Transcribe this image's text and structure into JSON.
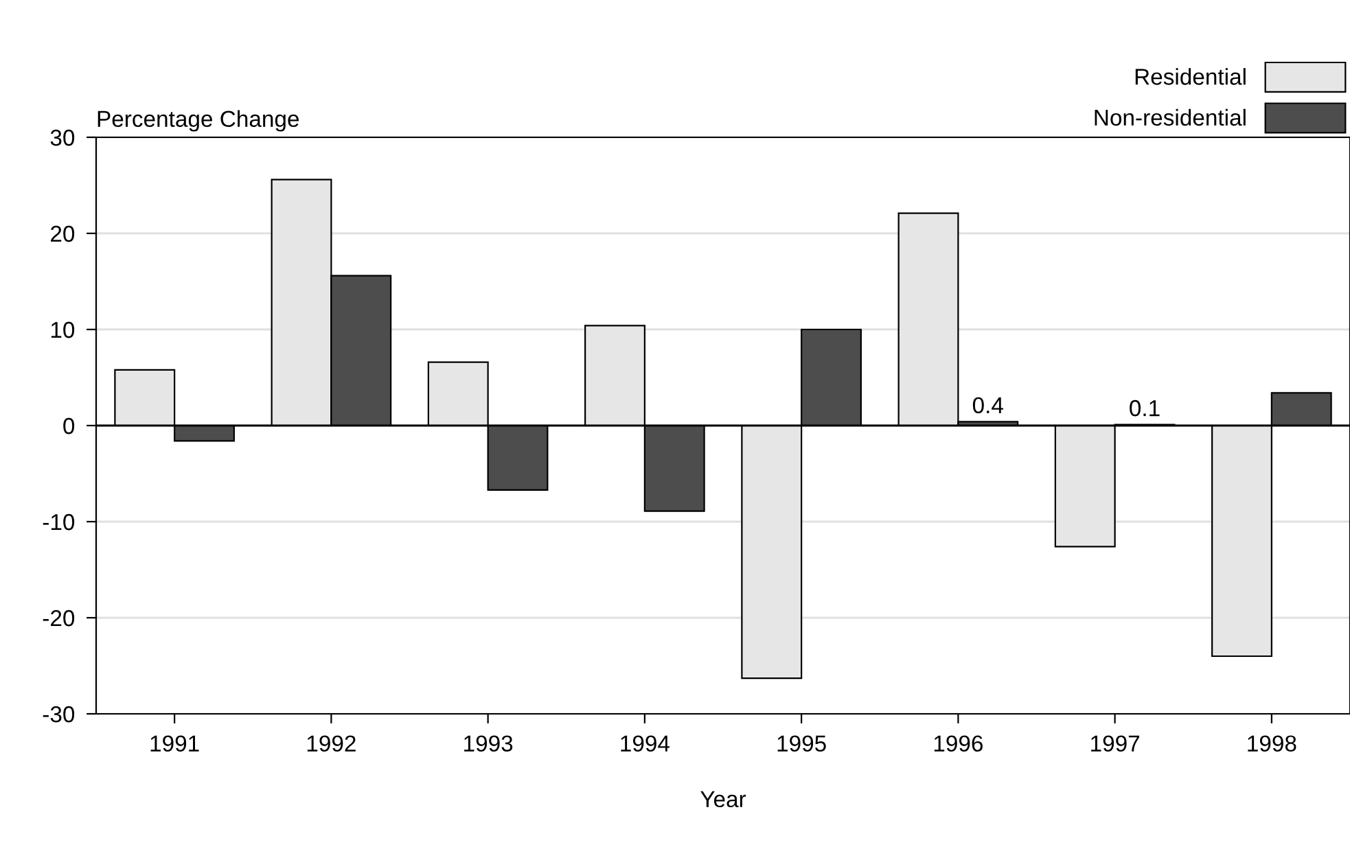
{
  "chart_data": {
    "type": "bar",
    "xlabel": "Year",
    "ylabel": "Percentage Change",
    "categories": [
      "1991",
      "1992",
      "1993",
      "1994",
      "1995",
      "1996",
      "1997",
      "1998"
    ],
    "series": [
      {
        "name": "Residential",
        "color": "#e6e6e6",
        "values": [
          5.8,
          25.6,
          6.6,
          10.4,
          -26.3,
          22.1,
          -12.6,
          -24.0
        ]
      },
      {
        "name": "Non-residential",
        "color": "#4d4d4d",
        "values": [
          -1.6,
          15.6,
          -6.7,
          -8.9,
          10.0,
          0.4,
          0.1,
          3.4
        ],
        "value_labels": [
          null,
          null,
          null,
          null,
          null,
          "0.4",
          "0.1",
          null
        ]
      }
    ],
    "ylim": [
      -30,
      30
    ],
    "yticks": [
      -30,
      -20,
      -10,
      0,
      10,
      20,
      30
    ],
    "grid": "y",
    "legend": "top right"
  }
}
